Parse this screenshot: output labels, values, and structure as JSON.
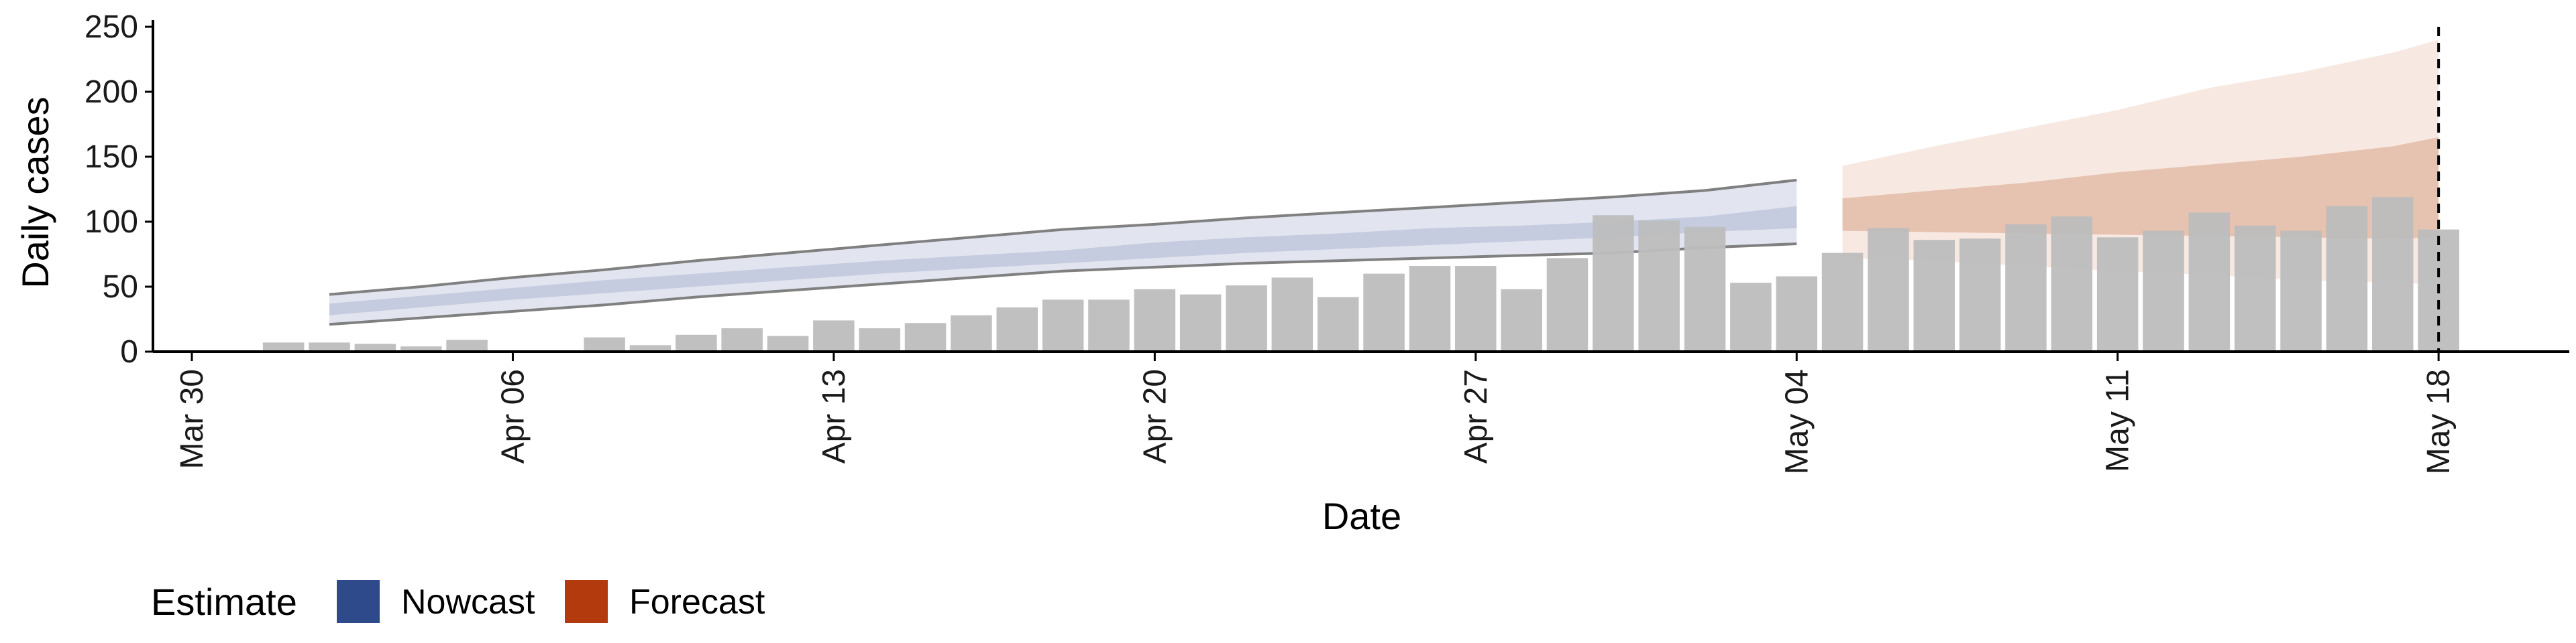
{
  "chart_data": {
    "type": "bar",
    "xlabel": "Date",
    "ylabel": "Daily cases",
    "ylim": [
      0,
      250
    ],
    "y_ticks": [
      0,
      50,
      100,
      150,
      200,
      250
    ],
    "x_tick_labels": [
      "Mar 30",
      "Apr 06",
      "Apr 13",
      "Apr 20",
      "Apr 27",
      "May 04",
      "May 11",
      "May 18"
    ],
    "x_tick_dates": [
      "2020-03-30",
      "2020-04-06",
      "2020-04-13",
      "2020-04-20",
      "2020-04-27",
      "2020-05-04",
      "2020-05-11",
      "2020-05-18"
    ],
    "grid": false,
    "legend": {
      "title": "Estimate",
      "placement": "bottom-left",
      "items": [
        {
          "label": "Nowcast",
          "color": "#2f4a8a"
        },
        {
          "label": "Forecast",
          "color": "#b33a0d"
        }
      ]
    },
    "colors": {
      "bars": "#bdbdbd",
      "nowcast_outer": "#e2e5f0",
      "nowcast_inner": "#c6ccdf",
      "nowcast_lines": "#808080",
      "forecast_outer": "#f7e8e1",
      "forecast_inner": "#e6c2b0",
      "vline": "#000000"
    },
    "reference_line": {
      "date": "2020-05-18",
      "style": "dashed"
    },
    "observed_cases": {
      "dates": [
        "2020-04-01",
        "2020-04-02",
        "2020-04-03",
        "2020-04-04",
        "2020-04-05",
        "2020-04-06",
        "2020-04-07",
        "2020-04-08",
        "2020-04-09",
        "2020-04-10",
        "2020-04-11",
        "2020-04-12",
        "2020-04-13",
        "2020-04-14",
        "2020-04-15",
        "2020-04-16",
        "2020-04-17",
        "2020-04-18",
        "2020-04-19",
        "2020-04-20",
        "2020-04-21",
        "2020-04-22",
        "2020-04-23",
        "2020-04-24",
        "2020-04-25",
        "2020-04-26",
        "2020-04-27",
        "2020-04-28",
        "2020-04-29",
        "2020-04-30",
        "2020-05-01",
        "2020-05-02",
        "2020-05-03",
        "2020-05-04",
        "2020-05-05",
        "2020-05-06",
        "2020-05-07",
        "2020-05-08",
        "2020-05-09",
        "2020-05-10",
        "2020-05-11",
        "2020-05-12",
        "2020-05-13",
        "2020-05-14",
        "2020-05-15",
        "2020-05-16",
        "2020-05-17",
        "2020-05-18"
      ],
      "values": [
        7,
        7,
        6,
        4,
        9,
        1,
        1,
        11,
        5,
        13,
        18,
        12,
        24,
        18,
        22,
        28,
        34,
        40,
        40,
        48,
        44,
        51,
        57,
        42,
        60,
        66,
        66,
        48,
        72,
        105,
        101,
        96,
        53,
        58,
        76,
        95,
        86,
        87,
        98,
        104,
        88,
        93,
        107,
        97,
        93,
        112,
        119,
        94
      ]
    },
    "nowcast": {
      "dates": [
        "2020-04-02",
        "2020-04-04",
        "2020-04-06",
        "2020-04-08",
        "2020-04-10",
        "2020-04-12",
        "2020-04-14",
        "2020-04-16",
        "2020-04-18",
        "2020-04-20",
        "2020-04-22",
        "2020-04-24",
        "2020-04-26",
        "2020-04-28",
        "2020-04-30",
        "2020-05-02",
        "2020-05-04"
      ],
      "lower_90": [
        21,
        26,
        31,
        36,
        42,
        47,
        52,
        57,
        62,
        65,
        68,
        70,
        72,
        74,
        76,
        80,
        83
      ],
      "lower_50": [
        28,
        34,
        40,
        45,
        50,
        55,
        60,
        64,
        68,
        72,
        76,
        79,
        82,
        85,
        88,
        92,
        95
      ],
      "upper_50": [
        37,
        43,
        49,
        55,
        60,
        65,
        70,
        74,
        78,
        84,
        88,
        91,
        95,
        97,
        100,
        104,
        112
      ],
      "upper_90": [
        44,
        50,
        57,
        63,
        70,
        76,
        82,
        88,
        94,
        98,
        103,
        107,
        111,
        115,
        119,
        124,
        132
      ]
    },
    "forecast": {
      "dates": [
        "2020-05-05",
        "2020-05-07",
        "2020-05-09",
        "2020-05-11",
        "2020-05-13",
        "2020-05-15",
        "2020-05-17",
        "2020-05-18"
      ],
      "lower_90": [
        72,
        70,
        66,
        62,
        59,
        55,
        53,
        52
      ],
      "lower_50": [
        93,
        92,
        91,
        90,
        89,
        88,
        87,
        88
      ],
      "upper_50": [
        118,
        124,
        130,
        138,
        144,
        150,
        158,
        165
      ],
      "upper_90": [
        143,
        158,
        172,
        186,
        203,
        215,
        230,
        240
      ]
    }
  }
}
